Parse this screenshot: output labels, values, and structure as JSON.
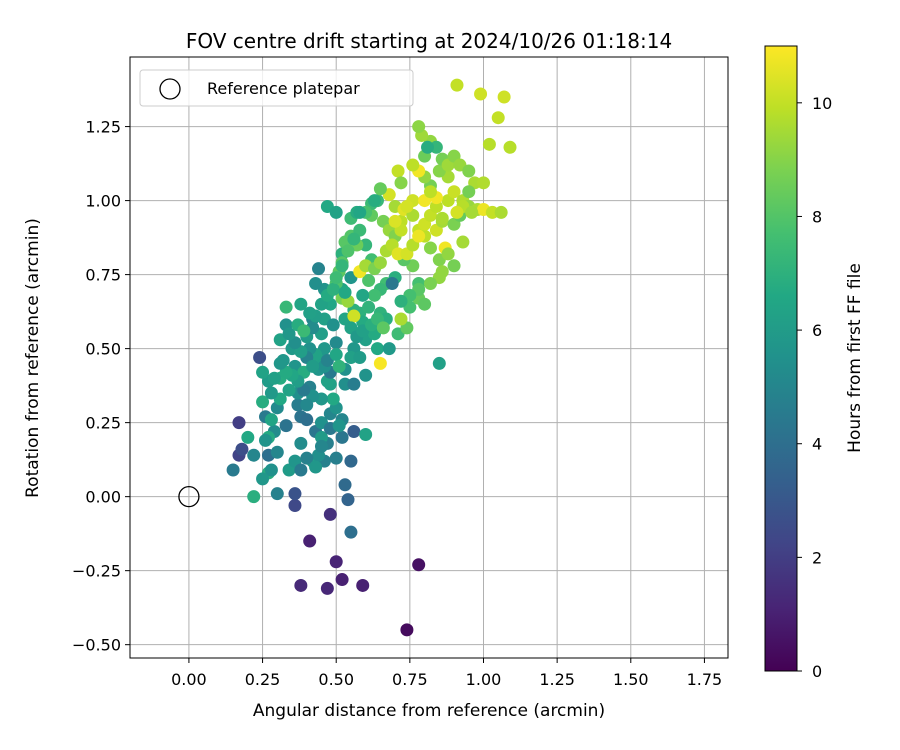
{
  "chart_data": {
    "type": "scatter",
    "title": "FOV centre drift starting at 2024/10/26 01:18:14",
    "xlabel": "Angular distance from reference (arcmin)",
    "ylabel": "Rotation from reference (arcmin)",
    "xlim": [
      -0.2,
      1.83
    ],
    "ylim": [
      -0.545,
      1.485
    ],
    "xticks": [
      0.0,
      0.25,
      0.5,
      0.75,
      1.0,
      1.25,
      1.5,
      1.75
    ],
    "xtick_labels": [
      "0.00",
      "0.25",
      "0.50",
      "0.75",
      "1.00",
      "1.25",
      "1.50",
      "1.75"
    ],
    "yticks": [
      -0.5,
      -0.25,
      0.0,
      0.25,
      0.5,
      0.75,
      1.0,
      1.25
    ],
    "ytick_labels": [
      "−0.50",
      "−0.25",
      "0.00",
      "0.25",
      "0.50",
      "0.75",
      "1.00",
      "1.25"
    ],
    "grid": true,
    "legend": {
      "label": "Reference platepar",
      "placement": "top-left"
    },
    "reference": {
      "x": 0.0,
      "y": 0.0
    },
    "colorbar": {
      "label": "Hours from first FF file",
      "colormap": "viridis",
      "range": [
        0,
        11
      ],
      "ticks": [
        0,
        2,
        4,
        6,
        8,
        10
      ],
      "tick_labels": [
        "0",
        "2",
        "4",
        "6",
        "8",
        "10"
      ]
    },
    "points": [
      [
        0.74,
        -0.45,
        0.3
      ],
      [
        0.78,
        -0.23,
        0.5
      ],
      [
        0.52,
        -0.28,
        1.0
      ],
      [
        0.47,
        -0.31,
        1.2
      ],
      [
        0.59,
        -0.3,
        1.0
      ],
      [
        0.38,
        -0.3,
        1.3
      ],
      [
        0.5,
        -0.22,
        1.1
      ],
      [
        0.41,
        -0.15,
        1.0
      ],
      [
        0.48,
        -0.06,
        1.5
      ],
      [
        0.36,
        -0.03,
        2.4
      ],
      [
        0.55,
        -0.12,
        4.0
      ],
      [
        0.36,
        0.01,
        2.8
      ],
      [
        0.53,
        0.04,
        3.8
      ],
      [
        0.54,
        -0.01,
        3.5
      ],
      [
        0.3,
        0.01,
        4.8
      ],
      [
        0.17,
        0.14,
        2.2
      ],
      [
        0.18,
        0.16,
        2.6
      ],
      [
        0.17,
        0.25,
        2.0
      ],
      [
        0.15,
        0.09,
        4.5
      ],
      [
        0.24,
        0.47,
        2.6
      ],
      [
        0.2,
        0.2,
        6.6
      ],
      [
        0.22,
        0.14,
        5.0
      ],
      [
        0.27,
        0.08,
        6.8
      ],
      [
        0.22,
        0.0,
        6.9
      ],
      [
        0.26,
        0.27,
        4.5
      ],
      [
        0.29,
        0.22,
        5.3
      ],
      [
        0.27,
        0.14,
        4.0
      ],
      [
        0.3,
        0.15,
        5.0
      ],
      [
        0.25,
        0.32,
        6.8
      ],
      [
        0.27,
        0.39,
        6.0
      ],
      [
        0.25,
        0.42,
        6.3
      ],
      [
        0.31,
        0.4,
        6.8
      ],
      [
        0.32,
        0.46,
        5.8
      ],
      [
        0.33,
        0.58,
        5.5
      ],
      [
        0.33,
        0.64,
        7.3
      ],
      [
        0.38,
        0.65,
        6.4
      ],
      [
        0.31,
        0.53,
        6.3
      ],
      [
        0.35,
        0.5,
        5.9
      ],
      [
        0.3,
        0.3,
        5.2
      ],
      [
        0.33,
        0.24,
        4.2
      ],
      [
        0.37,
        0.31,
        4.6
      ],
      [
        0.38,
        0.27,
        4.2
      ],
      [
        0.37,
        0.35,
        5.4
      ],
      [
        0.41,
        0.37,
        4.8
      ],
      [
        0.43,
        0.22,
        4.3
      ],
      [
        0.4,
        0.26,
        4.0
      ],
      [
        0.38,
        0.18,
        5.3
      ],
      [
        0.42,
        0.12,
        6.1
      ],
      [
        0.46,
        0.12,
        4.8
      ],
      [
        0.44,
        0.14,
        5.4
      ],
      [
        0.47,
        0.18,
        4.7
      ],
      [
        0.45,
        0.2,
        6.0
      ],
      [
        0.5,
        0.13,
        4.7
      ],
      [
        0.52,
        0.2,
        4.3
      ],
      [
        0.55,
        0.12,
        3.7
      ],
      [
        0.56,
        0.22,
        3.2
      ],
      [
        0.6,
        0.21,
        6.3
      ],
      [
        0.45,
        0.25,
        5.5
      ],
      [
        0.48,
        0.28,
        5.0
      ],
      [
        0.5,
        0.3,
        5.6
      ],
      [
        0.52,
        0.26,
        5.0
      ],
      [
        0.49,
        0.33,
        6.6
      ],
      [
        0.48,
        0.38,
        6.2
      ],
      [
        0.53,
        0.38,
        5.4
      ],
      [
        0.44,
        0.43,
        5.7
      ],
      [
        0.44,
        0.47,
        6.2
      ],
      [
        0.46,
        0.5,
        5.8
      ],
      [
        0.5,
        0.52,
        5.2
      ],
      [
        0.45,
        0.55,
        6.1
      ],
      [
        0.42,
        0.6,
        5.0
      ],
      [
        0.46,
        0.6,
        6.2
      ],
      [
        0.48,
        0.65,
        6.5
      ],
      [
        0.46,
        0.7,
        5.6
      ],
      [
        0.43,
        0.72,
        5.4
      ],
      [
        0.44,
        0.77,
        4.9
      ],
      [
        0.5,
        0.72,
        6.9
      ],
      [
        0.52,
        0.7,
        6.4
      ],
      [
        0.55,
        0.74,
        5.7
      ],
      [
        0.53,
        0.6,
        6.4
      ],
      [
        0.56,
        0.63,
        7.0
      ],
      [
        0.58,
        0.62,
        7.0
      ],
      [
        0.56,
        0.5,
        5.8
      ],
      [
        0.55,
        0.47,
        6.2
      ],
      [
        0.53,
        0.43,
        5.5
      ],
      [
        0.58,
        0.47,
        6.0
      ],
      [
        0.6,
        0.53,
        6.2
      ],
      [
        0.59,
        0.59,
        6.7
      ],
      [
        0.63,
        0.55,
        6.7
      ],
      [
        0.65,
        0.62,
        7.1
      ],
      [
        0.67,
        0.6,
        6.9
      ],
      [
        0.64,
        0.5,
        6.6
      ],
      [
        0.68,
        0.5,
        5.9
      ],
      [
        0.71,
        0.55,
        7.5
      ],
      [
        0.74,
        0.57,
        8.3
      ],
      [
        0.72,
        0.6,
        9.6
      ],
      [
        0.75,
        0.64,
        7.7
      ],
      [
        0.78,
        0.67,
        8.4
      ],
      [
        0.8,
        0.65,
        8.2
      ],
      [
        0.78,
        0.72,
        7.7
      ],
      [
        0.76,
        0.78,
        8.6
      ],
      [
        0.73,
        0.8,
        8.1
      ],
      [
        0.7,
        0.74,
        6.9
      ],
      [
        0.67,
        0.72,
        7.6
      ],
      [
        0.65,
        0.7,
        7.3
      ],
      [
        0.63,
        0.68,
        7.6
      ],
      [
        0.61,
        0.73,
        7.9
      ],
      [
        0.62,
        0.8,
        7.6
      ],
      [
        0.6,
        0.85,
        7.2
      ],
      [
        0.57,
        0.85,
        8.5
      ],
      [
        0.55,
        0.88,
        8.0
      ],
      [
        0.52,
        0.82,
        7.0
      ],
      [
        0.53,
        0.86,
        8.1
      ],
      [
        0.55,
        0.94,
        7.5
      ],
      [
        0.57,
        0.96,
        6.8
      ],
      [
        0.62,
        0.95,
        8.3
      ],
      [
        0.66,
        0.93,
        8.7
      ],
      [
        0.64,
        1.0,
        7.3
      ],
      [
        0.68,
        0.9,
        9.3
      ],
      [
        0.7,
        0.88,
        8.9
      ],
      [
        0.72,
        0.93,
        9.9
      ],
      [
        0.7,
        0.98,
        9.5
      ],
      [
        0.73,
        0.97,
        10.5
      ],
      [
        0.76,
        1.0,
        10.2
      ],
      [
        0.76,
        0.95,
        9.6
      ],
      [
        0.8,
        1.0,
        10.8
      ],
      [
        0.78,
        0.9,
        10.0
      ],
      [
        0.8,
        0.88,
        9.9
      ],
      [
        0.82,
        0.84,
        9.0
      ],
      [
        0.85,
        0.8,
        8.9
      ],
      [
        0.86,
        0.76,
        9.2
      ],
      [
        0.87,
        0.84,
        10.8
      ],
      [
        0.84,
        0.9,
        10.2
      ],
      [
        0.86,
        0.93,
        9.5
      ],
      [
        0.9,
        0.92,
        8.8
      ],
      [
        0.92,
        0.95,
        8.4
      ],
      [
        0.88,
        1.0,
        9.9
      ],
      [
        0.9,
        1.03,
        10.1
      ],
      [
        0.93,
        1.0,
        9.7
      ],
      [
        0.95,
        0.98,
        9.3
      ],
      [
        0.98,
        0.97,
        9.6
      ],
      [
        1.0,
        0.97,
        10.7
      ],
      [
        1.03,
        0.96,
        10.0
      ],
      [
        1.06,
        0.96,
        9.6
      ],
      [
        0.93,
        0.86,
        9.5
      ],
      [
        0.9,
        0.78,
        8.7
      ],
      [
        0.88,
        0.82,
        9.2
      ],
      [
        0.85,
        0.74,
        9.2
      ],
      [
        0.82,
        0.72,
        8.8
      ],
      [
        0.78,
        0.7,
        8.1
      ],
      [
        0.75,
        0.68,
        7.7
      ],
      [
        0.72,
        0.66,
        7.0
      ],
      [
        0.88,
        1.08,
        9.5
      ],
      [
        0.85,
        1.1,
        9.0
      ],
      [
        0.82,
        1.05,
        8.7
      ],
      [
        0.8,
        1.08,
        9.2
      ],
      [
        0.78,
        1.1,
        10.8
      ],
      [
        0.76,
        1.12,
        9.9
      ],
      [
        0.8,
        1.15,
        8.5
      ],
      [
        0.82,
        1.2,
        9.2
      ],
      [
        0.79,
        1.22,
        9.4
      ],
      [
        0.78,
        1.25,
        9.1
      ],
      [
        0.84,
        1.18,
        7.2
      ],
      [
        0.86,
        1.14,
        8.7
      ],
      [
        0.88,
        1.12,
        9.4
      ],
      [
        0.9,
        1.15,
        9.0
      ],
      [
        0.92,
        1.12,
        9.3
      ],
      [
        0.95,
        1.1,
        8.9
      ],
      [
        0.97,
        1.06,
        9.6
      ],
      [
        1.0,
        1.06,
        9.7
      ],
      [
        1.02,
        1.19,
        9.8
      ],
      [
        1.05,
        1.28,
        10.0
      ],
      [
        1.07,
        1.35,
        10.2
      ],
      [
        0.99,
        1.36,
        10.2
      ],
      [
        0.91,
        1.39,
        10.0
      ],
      [
        1.09,
        1.18,
        9.8
      ],
      [
        0.95,
        1.03,
        8.7
      ],
      [
        0.93,
        0.98,
        9.8
      ],
      [
        0.91,
        0.96,
        10.3
      ],
      [
        0.96,
        0.96,
        9.5
      ],
      [
        0.71,
        1.1,
        10.0
      ],
      [
        0.72,
        1.06,
        9.0
      ],
      [
        0.68,
        1.02,
        10.3
      ],
      [
        0.65,
        1.04,
        8.4
      ],
      [
        0.62,
        0.99,
        7.4
      ],
      [
        0.6,
        0.96,
        7.8
      ],
      [
        0.58,
        0.9,
        7.4
      ],
      [
        0.56,
        0.87,
        7.2
      ],
      [
        0.54,
        0.83,
        7.9
      ],
      [
        0.52,
        0.79,
        8.1
      ],
      [
        0.51,
        0.76,
        8.2
      ],
      [
        0.5,
        0.72,
        7.9
      ],
      [
        0.52,
        0.67,
        8.7
      ],
      [
        0.54,
        0.66,
        9.3
      ],
      [
        0.56,
        0.61,
        10.2
      ],
      [
        0.58,
        0.76,
        10.8
      ],
      [
        0.6,
        0.78,
        9.5
      ],
      [
        0.63,
        0.77,
        8.8
      ],
      [
        0.65,
        0.79,
        9.3
      ],
      [
        0.67,
        0.83,
        9.6
      ],
      [
        0.69,
        0.85,
        9.8
      ],
      [
        0.71,
        0.82,
        10.5
      ],
      [
        0.74,
        0.82,
        10.3
      ],
      [
        0.76,
        0.85,
        9.8
      ],
      [
        0.78,
        0.88,
        10.7
      ],
      [
        0.8,
        0.92,
        10.2
      ],
      [
        0.82,
        0.95,
        10.0
      ],
      [
        0.84,
        0.98,
        9.9
      ],
      [
        0.86,
        0.94,
        9.6
      ],
      [
        0.84,
        1.01,
        10.8
      ],
      [
        0.82,
        1.03,
        9.9
      ],
      [
        0.74,
        0.98,
        10.3
      ],
      [
        0.72,
        0.9,
        10.0
      ],
      [
        0.7,
        0.93,
        10.4
      ],
      [
        0.65,
        0.45,
        10.9
      ],
      [
        0.85,
        0.45,
        6.2
      ],
      [
        0.47,
        0.98,
        6.6
      ],
      [
        0.5,
        0.96,
        6.3
      ],
      [
        0.63,
        1.0,
        6.8
      ],
      [
        0.81,
        1.18,
        6.8
      ],
      [
        0.69,
        0.72,
        4.4
      ],
      [
        0.58,
        0.96,
        6.5
      ],
      [
        0.49,
        0.58,
        5.5
      ],
      [
        0.36,
        0.44,
        5.7
      ],
      [
        0.39,
        0.42,
        6.8
      ],
      [
        0.34,
        0.36,
        6.3
      ],
      [
        0.31,
        0.33,
        6.6
      ],
      [
        0.28,
        0.26,
        6.4
      ],
      [
        0.27,
        0.2,
        6.7
      ],
      [
        0.26,
        0.19,
        5.6
      ],
      [
        0.28,
        0.09,
        5.5
      ],
      [
        0.25,
        0.06,
        5.8
      ],
      [
        0.34,
        0.09,
        6.0
      ],
      [
        0.36,
        0.12,
        5.7
      ],
      [
        0.38,
        0.09,
        4.5
      ],
      [
        0.4,
        0.13,
        4.8
      ],
      [
        0.43,
        0.1,
        5.8
      ],
      [
        0.45,
        0.17,
        5.0
      ],
      [
        0.48,
        0.23,
        4.4
      ],
      [
        0.51,
        0.24,
        5.7
      ],
      [
        0.47,
        0.39,
        6.3
      ],
      [
        0.45,
        0.33,
        5.8
      ],
      [
        0.42,
        0.34,
        5.5
      ],
      [
        0.4,
        0.31,
        5.1
      ],
      [
        0.39,
        0.36,
        4.5
      ],
      [
        0.37,
        0.39,
        6.1
      ],
      [
        0.35,
        0.41,
        6.5
      ],
      [
        0.33,
        0.42,
        6.7
      ],
      [
        0.31,
        0.45,
        5.8
      ],
      [
        0.29,
        0.4,
        6.2
      ],
      [
        0.28,
        0.35,
        5.9
      ],
      [
        0.43,
        0.48,
        6.3
      ],
      [
        0.41,
        0.5,
        5.5
      ],
      [
        0.4,
        0.54,
        6.0
      ],
      [
        0.42,
        0.57,
        5.3
      ],
      [
        0.43,
        0.61,
        6.1
      ],
      [
        0.45,
        0.65,
        6.3
      ],
      [
        0.47,
        0.68,
        6.7
      ],
      [
        0.49,
        0.7,
        7.0
      ],
      [
        0.5,
        0.74,
        7.5
      ],
      [
        0.52,
        0.78,
        7.2
      ],
      [
        0.53,
        0.69,
        6.6
      ],
      [
        0.55,
        0.57,
        6.3
      ],
      [
        0.57,
        0.54,
        5.9
      ],
      [
        0.59,
        0.56,
        6.2
      ],
      [
        0.62,
        0.58,
        6.9
      ],
      [
        0.64,
        0.6,
        7.3
      ],
      [
        0.66,
        0.57,
        8.2
      ],
      [
        0.61,
        0.64,
        7.1
      ],
      [
        0.59,
        0.68,
        6.5
      ],
      [
        0.6,
        0.41,
        5.6
      ],
      [
        0.56,
        0.38,
        4.6
      ],
      [
        0.48,
        0.42,
        4.5
      ],
      [
        0.46,
        0.44,
        5.5
      ],
      [
        0.4,
        0.47,
        4.9
      ],
      [
        0.42,
        0.44,
        6.0
      ],
      [
        0.38,
        0.49,
        6.1
      ],
      [
        0.36,
        0.52,
        5.4
      ],
      [
        0.34,
        0.55,
        5.8
      ],
      [
        0.37,
        0.58,
        6.8
      ],
      [
        0.39,
        0.56,
        7.4
      ],
      [
        0.41,
        0.62,
        6.2
      ],
      [
        0.47,
        0.46,
        4.9
      ],
      [
        0.5,
        0.48,
        6.5
      ],
      [
        0.51,
        0.44,
        7.1
      ]
    ]
  }
}
